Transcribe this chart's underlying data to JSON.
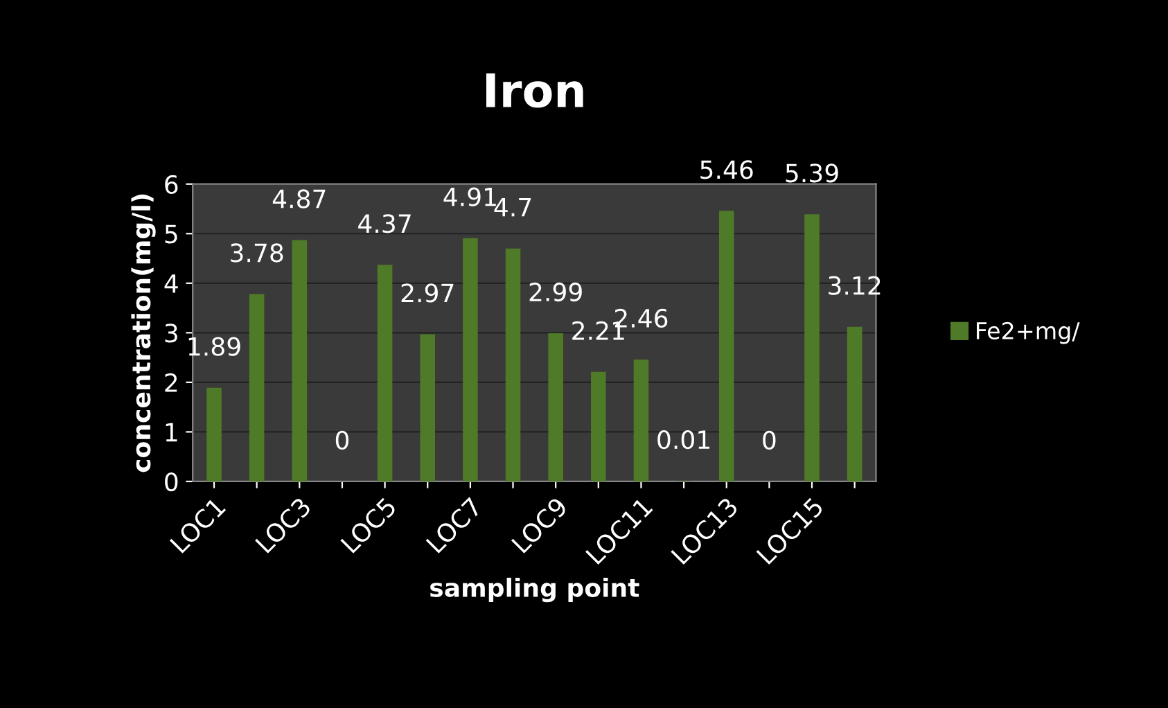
{
  "chart_data": {
    "type": "bar",
    "title": "Iron",
    "xlabel": "sampling point",
    "ylabel": "concentration(mg/l)",
    "categories": [
      "LOC1",
      null,
      "LOC3",
      null,
      "LOC5",
      null,
      "LOC7",
      null,
      "LOC9",
      null,
      "LOC11",
      null,
      "LOC13",
      null,
      "LOC15",
      null
    ],
    "series": [
      {
        "name": "Fe2+mg/",
        "color": "#4f7a28",
        "values": [
          1.89,
          3.78,
          4.87,
          0,
          4.37,
          2.97,
          4.91,
          4.7,
          2.99,
          2.21,
          2.46,
          0.01,
          5.46,
          0,
          5.39,
          3.12
        ]
      }
    ],
    "ylim": [
      0,
      6
    ],
    "yticks": [
      0,
      1,
      2,
      3,
      4,
      5,
      6
    ],
    "grid": "y",
    "legend": "right",
    "data_labels": true
  }
}
